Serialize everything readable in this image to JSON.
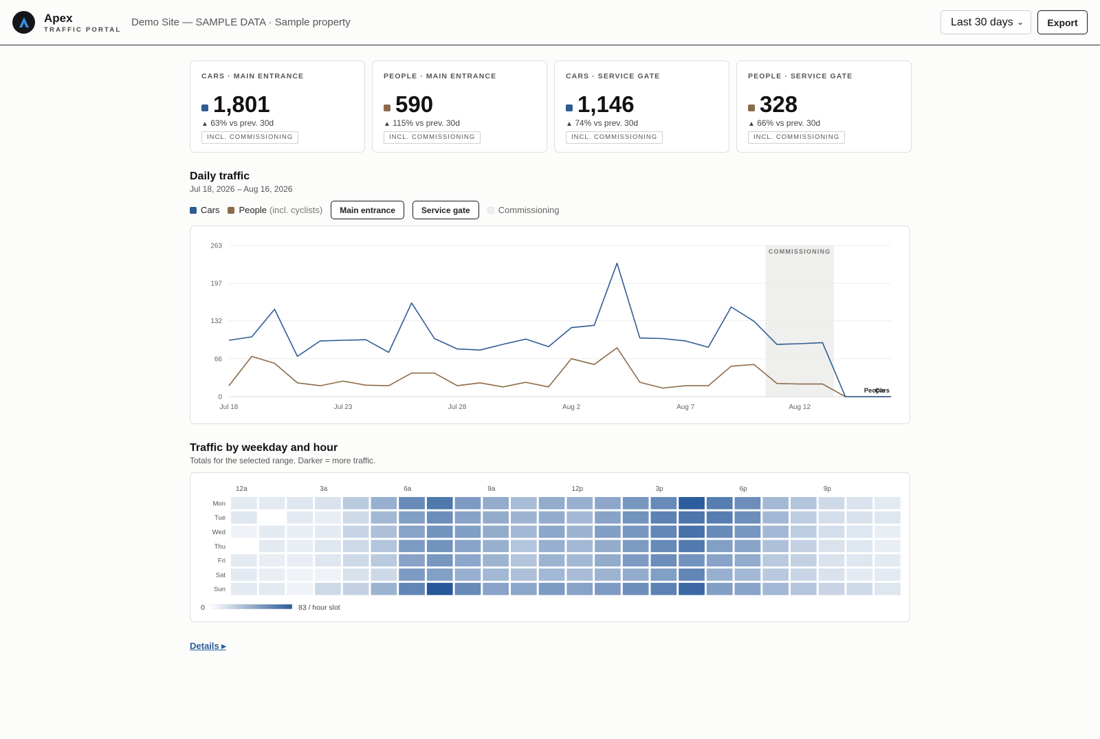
{
  "header": {
    "brand": "Apex",
    "brand_sub": "TRAFFIC PORTAL",
    "site_label": "Demo Site — SAMPLE DATA · Sample property",
    "range_value": "Last 30 days",
    "export_label": "Export"
  },
  "colors": {
    "cars": "#2e5b93",
    "people": "#8b6b4a",
    "commissioning": "#efefed"
  },
  "kpis": [
    {
      "title": "CARS · MAIN ENTRANCE",
      "value": "1,801",
      "delta": "63% vs prev. 30d",
      "badge": "INCL. COMMISSIONING",
      "series": "cars"
    },
    {
      "title": "PEOPLE · MAIN ENTRANCE",
      "value": "590",
      "delta": "115% vs prev. 30d",
      "badge": "INCL. COMMISSIONING",
      "series": "people"
    },
    {
      "title": "CARS · SERVICE GATE",
      "value": "1,146",
      "delta": "74% vs prev. 30d",
      "badge": "INCL. COMMISSIONING",
      "series": "cars"
    },
    {
      "title": "PEOPLE · SERVICE GATE",
      "value": "328",
      "delta": "66% vs prev. 30d",
      "badge": "INCL. COMMISSIONING",
      "series": "people"
    }
  ],
  "daily": {
    "title": "Daily traffic",
    "subtitle": "Jul 18, 2026 – Aug 16, 2026",
    "legend_cars": "Cars",
    "legend_people": "People",
    "legend_people_note": "(incl. cyclists)",
    "pill_main": "Main entrance",
    "pill_service": "Service gate",
    "legend_commissioning": "Commissioning"
  },
  "heatmap_text": {
    "title": "Traffic by weekday and hour",
    "subtitle": "Totals for the selected range. Darker = more traffic.",
    "scale_min": "0",
    "scale_max": "83 / hour slot"
  },
  "details_label": "Details ▸",
  "chart_data": [
    {
      "type": "line",
      "x": [
        "Jul 18",
        "Jul 19",
        "Jul 20",
        "Jul 21",
        "Jul 22",
        "Jul 23",
        "Jul 24",
        "Jul 25",
        "Jul 26",
        "Jul 27",
        "Jul 28",
        "Jul 29",
        "Jul 30",
        "Jul 31",
        "Aug 1",
        "Aug 2",
        "Aug 3",
        "Aug 4",
        "Aug 5",
        "Aug 6",
        "Aug 7",
        "Aug 8",
        "Aug 9",
        "Aug 10",
        "Aug 11",
        "Aug 12",
        "Aug 13",
        "Aug 14",
        "Aug 15",
        "Aug 16"
      ],
      "x_tick_labels": [
        "Jul 18",
        "Jul 23",
        "Jul 28",
        "Aug 2",
        "Aug 7",
        "Aug 12"
      ],
      "y_ticks": [
        0,
        66,
        132,
        197,
        263
      ],
      "ylim": [
        0,
        263
      ],
      "series": [
        {
          "name": "Cars",
          "color": "#2e5b93",
          "values": [
            98,
            104,
            152,
            70,
            97,
            98,
            99,
            77,
            163,
            101,
            83,
            81,
            91,
            100,
            87,
            120,
            124,
            232,
            102,
            101,
            97,
            86,
            156,
            131,
            91,
            92,
            94,
            0,
            0,
            0
          ]
        },
        {
          "name": "People",
          "color": "#8b6b4a",
          "values": [
            19,
            70,
            58,
            24,
            19,
            27,
            20,
            19,
            41,
            41,
            19,
            24,
            17,
            25,
            17,
            66,
            56,
            85,
            25,
            15,
            19,
            19,
            53,
            56,
            23,
            22,
            22,
            0,
            0,
            0
          ]
        }
      ],
      "band": {
        "label": "COMMISSIONING",
        "from": "Aug 10",
        "to": "Aug 13"
      },
      "end_labels": [
        "People",
        "Cars"
      ],
      "grid": true
    },
    {
      "type": "heatmap",
      "x_tick_labels": [
        "12a",
        "3a",
        "6a",
        "9a",
        "12p",
        "3p",
        "6p",
        "9p"
      ],
      "rows": [
        "Mon",
        "Tue",
        "Wed",
        "Thu",
        "Fri",
        "Sat",
        "Sun"
      ],
      "columns": 24,
      "scale": {
        "min": 0,
        "max": 83
      },
      "values": [
        [
          10,
          10,
          12,
          14,
          25,
          38,
          56,
          65,
          48,
          40,
          32,
          40,
          38,
          42,
          50,
          56,
          78,
          62,
          54,
          34,
          28,
          18,
          14,
          10
        ],
        [
          12,
          0,
          10,
          8,
          18,
          34,
          46,
          54,
          44,
          40,
          36,
          40,
          34,
          44,
          52,
          60,
          66,
          62,
          54,
          34,
          24,
          16,
          14,
          12
        ],
        [
          6,
          10,
          8,
          10,
          20,
          30,
          44,
          52,
          46,
          40,
          34,
          42,
          36,
          46,
          50,
          58,
          68,
          56,
          50,
          34,
          24,
          16,
          12,
          8
        ],
        [
          0,
          10,
          8,
          12,
          18,
          28,
          48,
          52,
          44,
          38,
          28,
          38,
          34,
          40,
          48,
          56,
          64,
          46,
          44,
          30,
          22,
          14,
          12,
          8
        ],
        [
          10,
          8,
          8,
          12,
          18,
          26,
          44,
          50,
          42,
          36,
          28,
          36,
          34,
          40,
          48,
          54,
          52,
          44,
          40,
          26,
          22,
          14,
          12,
          10
        ],
        [
          10,
          8,
          6,
          6,
          14,
          18,
          48,
          46,
          38,
          34,
          30,
          34,
          32,
          36,
          40,
          46,
          58,
          38,
          34,
          26,
          20,
          14,
          10,
          10
        ],
        [
          10,
          10,
          6,
          18,
          22,
          36,
          58,
          80,
          56,
          44,
          42,
          48,
          44,
          48,
          54,
          60,
          72,
          46,
          44,
          34,
          28,
          20,
          18,
          12
        ]
      ]
    }
  ]
}
